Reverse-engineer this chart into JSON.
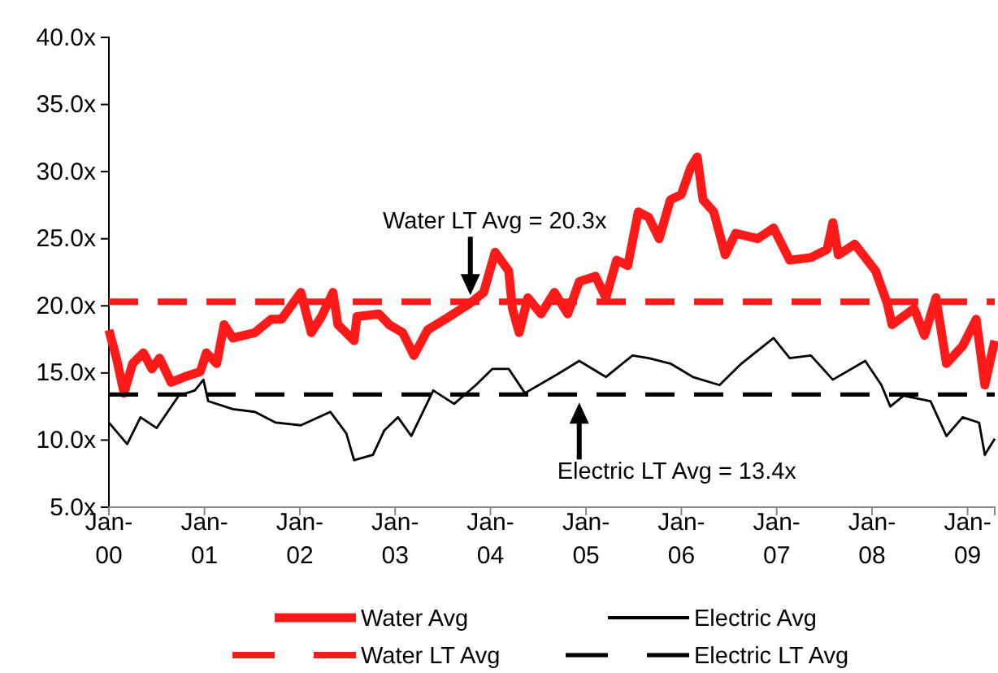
{
  "chart_data": {
    "type": "line",
    "xlim": [
      "2000-01-01",
      "2009-04-15"
    ],
    "xticks": [
      {
        "value": "2000-01-01",
        "label": "Jan-00"
      },
      {
        "value": "2001-01-01",
        "label": "Jan-01"
      },
      {
        "value": "2002-01-01",
        "label": "Jan-02"
      },
      {
        "value": "2003-01-01",
        "label": "Jan-03"
      },
      {
        "value": "2004-01-01",
        "label": "Jan-04"
      },
      {
        "value": "2005-01-01",
        "label": "Jan-05"
      },
      {
        "value": "2006-01-01",
        "label": "Jan-06"
      },
      {
        "value": "2007-01-01",
        "label": "Jan-07"
      },
      {
        "value": "2008-01-01",
        "label": "Jan-08"
      },
      {
        "value": "2009-01-01",
        "label": "Jan-09"
      }
    ],
    "ylim": [
      5,
      40
    ],
    "yticks": [
      {
        "value": 5,
        "label": "5.0x"
      },
      {
        "value": 10,
        "label": "10.0x"
      },
      {
        "value": 15,
        "label": "15.0x"
      },
      {
        "value": 20,
        "label": "20.0x"
      },
      {
        "value": 25,
        "label": "25.0x"
      },
      {
        "value": 30,
        "label": "30.0x"
      },
      {
        "value": 35,
        "label": "35.0x"
      },
      {
        "value": 40,
        "label": "40.0x"
      }
    ],
    "grid": false,
    "legend": "bottom",
    "series": [
      {
        "name": "Water Avg",
        "color": "#ff1a1a",
        "line_style": "solid",
        "x": [
          "2000-01-01",
          "2000-01-30",
          "2000-02-28",
          "2000-04-01",
          "2000-05-12",
          "2000-06-14",
          "2000-07-13",
          "2000-08-26",
          "2000-10-16",
          "2000-12-16",
          "2001-01-08",
          "2001-02-17",
          "2001-03-17",
          "2001-04-20",
          "2001-07-13",
          "2001-09-13",
          "2001-10-23",
          "2002-01-05",
          "2002-02-14",
          "2002-03-25",
          "2002-05-08",
          "2002-05-27",
          "2002-07-28",
          "2002-08-08",
          "2002-10-31",
          "2002-12-09",
          "2003-01-30",
          "2003-03-14",
          "2003-05-05",
          "2003-07-28",
          "2003-10-16",
          "2003-12-06",
          "2004-01-19",
          "2004-03-11",
          "2004-03-25",
          "2004-04-20",
          "2004-05-23",
          "2004-07-13",
          "2004-09-02",
          "2004-10-23",
          "2004-12-06",
          "2005-02-06",
          "2005-03-18",
          "2005-04-28",
          "2005-06-10",
          "2005-07-20",
          "2005-08-29",
          "2005-10-08",
          "2005-11-20",
          "2006-01-01",
          "2006-02-06",
          "2006-03-03",
          "2006-03-25",
          "2006-05-05",
          "2006-06-18",
          "2006-07-28",
          "2006-10-20",
          "2006-12-20",
          "2007-02-20",
          "2007-05-12",
          "2007-07-13",
          "2007-08-04",
          "2007-08-25",
          "2007-10-27",
          "2008-01-15",
          "2008-02-28",
          "2008-03-18",
          "2008-06-10",
          "2008-07-20",
          "2008-09-02",
          "2008-10-12",
          "2008-12-13",
          "2009-02-03",
          "2009-03-08",
          "2009-04-15"
        ],
        "values": [
          18.2,
          16.1,
          13.5,
          15.7,
          16.5,
          15.3,
          16.1,
          14.3,
          14.7,
          15.1,
          16.5,
          15.7,
          18.6,
          17.6,
          18.0,
          19.0,
          19.0,
          21.0,
          18.0,
          19.2,
          21.0,
          18.6,
          17.4,
          19.2,
          19.4,
          18.6,
          18.0,
          16.3,
          18.2,
          19.2,
          20.2,
          21.0,
          24.0,
          22.6,
          19.8,
          18.0,
          20.6,
          19.4,
          21.0,
          19.4,
          21.8,
          22.2,
          20.6,
          23.4,
          23.0,
          27.0,
          26.6,
          25.0,
          27.9,
          28.3,
          30.3,
          31.1,
          27.9,
          27.0,
          23.8,
          25.4,
          25.0,
          25.8,
          23.4,
          23.6,
          24.2,
          26.2,
          23.8,
          24.6,
          22.6,
          20.2,
          18.6,
          19.8,
          17.8,
          20.6,
          15.7,
          17.0,
          19.0,
          14.1,
          17.4
        ]
      },
      {
        "name": "Electric Avg",
        "color": "#000000",
        "line_style": "solid",
        "x": [
          "2000-01-01",
          "2000-03-11",
          "2000-05-01",
          "2000-07-02",
          "2000-09-24",
          "2000-11-25",
          "2000-12-28",
          "2001-01-15",
          "2001-04-20",
          "2001-07-13",
          "2001-10-01",
          "2002-01-05",
          "2002-04-28",
          "2002-06-28",
          "2002-07-28",
          "2002-10-08",
          "2002-11-20",
          "2003-01-12",
          "2003-03-04",
          "2003-05-27",
          "2003-08-15",
          "2003-11-06",
          "2004-01-08",
          "2004-03-11",
          "2004-05-12",
          "2004-09-13",
          "2004-12-06",
          "2005-03-18",
          "2005-06-28",
          "2005-08-29",
          "2005-11-20",
          "2006-02-14",
          "2006-05-27",
          "2006-08-19",
          "2006-12-20",
          "2007-02-20",
          "2007-05-12",
          "2007-08-04",
          "2007-12-06",
          "2008-02-06",
          "2008-03-11",
          "2008-05-01",
          "2008-08-12",
          "2008-10-12",
          "2008-12-13",
          "2009-02-14",
          "2009-03-08",
          "2009-04-15"
        ],
        "values": [
          11.3,
          9.7,
          11.7,
          10.9,
          13.3,
          13.7,
          14.5,
          12.9,
          12.3,
          12.1,
          11.3,
          11.1,
          12.1,
          10.5,
          8.5,
          8.9,
          10.7,
          11.7,
          10.3,
          13.7,
          12.7,
          14.1,
          15.3,
          15.3,
          13.5,
          14.9,
          15.9,
          14.7,
          16.3,
          16.1,
          15.7,
          14.7,
          14.1,
          15.7,
          17.6,
          16.1,
          16.3,
          14.5,
          15.9,
          14.1,
          12.5,
          13.3,
          12.9,
          10.3,
          11.7,
          11.3,
          8.9,
          10.1
        ]
      },
      {
        "name": "Water LT Avg",
        "color": "#ff1a1a",
        "line_style": "dashed",
        "x": [
          "2000-01-01",
          "2009-04-15"
        ],
        "values": [
          20.3,
          20.3
        ]
      },
      {
        "name": "Electric LT Avg",
        "color": "#000000",
        "line_style": "dashed",
        "x": [
          "2000-01-01",
          "2009-04-15"
        ],
        "values": [
          13.4,
          13.4
        ]
      }
    ],
    "annotations": [
      {
        "text": "Water LT Avg = 20.3x",
        "x": "2003-10-16",
        "y": 20.3
      },
      {
        "text": "Electric LT Avg = 13.4x",
        "x": "2004-12-06",
        "y": 13.4
      }
    ]
  }
}
